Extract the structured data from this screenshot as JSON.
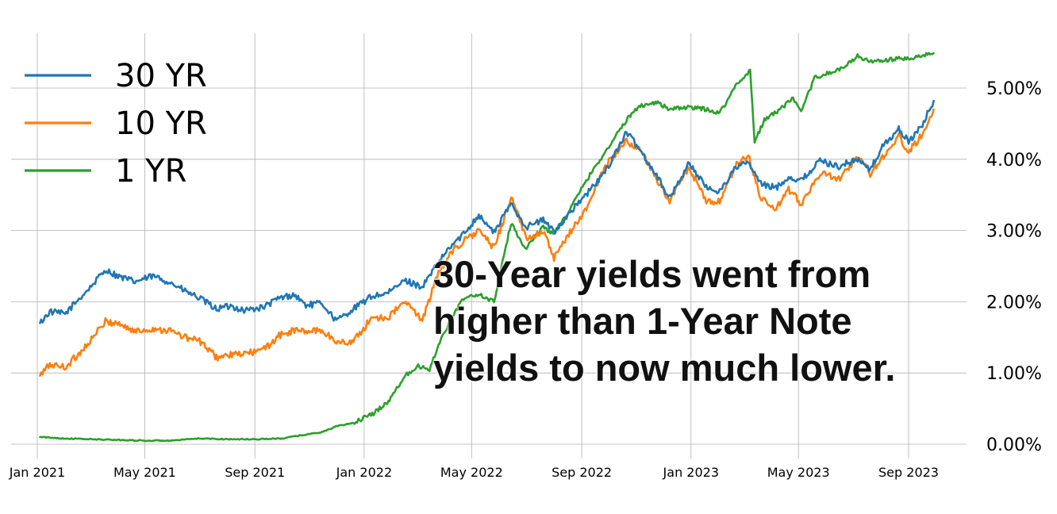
{
  "chart_data": {
    "type": "line",
    "title": "",
    "xlabel": "",
    "ylabel": "",
    "x_ticks": [
      "Jan 2021",
      "May 2021",
      "Sep 2021",
      "Jan 2022",
      "May 2022",
      "Sep 2022",
      "Jan 2023",
      "May 2023",
      "Sep 2023"
    ],
    "y_ticks": [
      "0.00%",
      "1.00%",
      "2.00%",
      "3.00%",
      "4.00%",
      "5.00%"
    ],
    "xlim": [
      "2020-12-01",
      "2023-11-10"
    ],
    "ylim": [
      -0.2,
      5.8
    ],
    "grid": true,
    "legend_position": "top-left",
    "y_axis_side": "right",
    "series": [
      {
        "name": "30 YR",
        "color": "#1f77b4",
        "points": [
          [
            "2021-01-04",
            1.7
          ],
          [
            "2021-01-15",
            1.86
          ],
          [
            "2021-02-01",
            1.83
          ],
          [
            "2021-02-15",
            2.02
          ],
          [
            "2021-03-01",
            2.2
          ],
          [
            "2021-03-18",
            2.45
          ],
          [
            "2021-04-01",
            2.36
          ],
          [
            "2021-04-20",
            2.28
          ],
          [
            "2021-05-10",
            2.36
          ],
          [
            "2021-05-28",
            2.28
          ],
          [
            "2021-06-15",
            2.15
          ],
          [
            "2021-07-01",
            2.05
          ],
          [
            "2021-07-20",
            1.9
          ],
          [
            "2021-08-05",
            1.94
          ],
          [
            "2021-08-20",
            1.88
          ],
          [
            "2021-09-10",
            1.92
          ],
          [
            "2021-09-28",
            2.05
          ],
          [
            "2021-10-15",
            2.1
          ],
          [
            "2021-10-28",
            1.95
          ],
          [
            "2021-11-15",
            1.98
          ],
          [
            "2021-12-01",
            1.73
          ],
          [
            "2021-12-20",
            1.9
          ],
          [
            "2022-01-10",
            2.08
          ],
          [
            "2022-01-28",
            2.12
          ],
          [
            "2022-02-15",
            2.3
          ],
          [
            "2022-03-07",
            2.21
          ],
          [
            "2022-03-25",
            2.55
          ],
          [
            "2022-04-08",
            2.78
          ],
          [
            "2022-04-22",
            2.95
          ],
          [
            "2022-05-09",
            3.22
          ],
          [
            "2022-05-26",
            2.97
          ],
          [
            "2022-06-14",
            3.38
          ],
          [
            "2022-07-01",
            3.05
          ],
          [
            "2022-07-20",
            3.15
          ],
          [
            "2022-08-01",
            2.98
          ],
          [
            "2022-08-19",
            3.26
          ],
          [
            "2022-09-06",
            3.5
          ],
          [
            "2022-09-27",
            3.82
          ],
          [
            "2022-10-21",
            4.38
          ],
          [
            "2022-11-04",
            4.15
          ],
          [
            "2022-11-25",
            3.75
          ],
          [
            "2022-12-08",
            3.45
          ],
          [
            "2022-12-30",
            3.95
          ],
          [
            "2023-01-18",
            3.6
          ],
          [
            "2023-02-02",
            3.55
          ],
          [
            "2023-02-21",
            3.9
          ],
          [
            "2023-03-06",
            3.95
          ],
          [
            "2023-03-20",
            3.65
          ],
          [
            "2023-04-06",
            3.6
          ],
          [
            "2023-04-20",
            3.75
          ],
          [
            "2023-05-04",
            3.7
          ],
          [
            "2023-05-25",
            3.98
          ],
          [
            "2023-06-15",
            3.9
          ],
          [
            "2023-07-06",
            4.0
          ],
          [
            "2023-07-20",
            3.85
          ],
          [
            "2023-08-04",
            4.2
          ],
          [
            "2023-08-21",
            4.42
          ],
          [
            "2023-09-01",
            4.25
          ],
          [
            "2023-09-15",
            4.45
          ],
          [
            "2023-09-29",
            4.82
          ]
        ]
      },
      {
        "name": "10 YR",
        "color": "#ff7f0e",
        "points": [
          [
            "2021-01-04",
            0.96
          ],
          [
            "2021-01-15",
            1.12
          ],
          [
            "2021-02-01",
            1.08
          ],
          [
            "2021-02-15",
            1.25
          ],
          [
            "2021-03-01",
            1.45
          ],
          [
            "2021-03-18",
            1.72
          ],
          [
            "2021-04-01",
            1.7
          ],
          [
            "2021-04-20",
            1.58
          ],
          [
            "2021-05-10",
            1.62
          ],
          [
            "2021-05-28",
            1.6
          ],
          [
            "2021-06-15",
            1.5
          ],
          [
            "2021-07-01",
            1.45
          ],
          [
            "2021-07-20",
            1.22
          ],
          [
            "2021-08-05",
            1.25
          ],
          [
            "2021-08-20",
            1.27
          ],
          [
            "2021-09-10",
            1.32
          ],
          [
            "2021-09-28",
            1.52
          ],
          [
            "2021-10-15",
            1.6
          ],
          [
            "2021-10-28",
            1.58
          ],
          [
            "2021-11-15",
            1.6
          ],
          [
            "2021-12-01",
            1.43
          ],
          [
            "2021-12-20",
            1.44
          ],
          [
            "2022-01-10",
            1.78
          ],
          [
            "2022-01-28",
            1.78
          ],
          [
            "2022-02-15",
            2.0
          ],
          [
            "2022-03-07",
            1.75
          ],
          [
            "2022-03-25",
            2.4
          ],
          [
            "2022-04-08",
            2.7
          ],
          [
            "2022-04-22",
            2.85
          ],
          [
            "2022-05-09",
            3.0
          ],
          [
            "2022-05-26",
            2.75
          ],
          [
            "2022-06-14",
            3.48
          ],
          [
            "2022-07-01",
            2.88
          ],
          [
            "2022-07-20",
            3.0
          ],
          [
            "2022-08-01",
            2.6
          ],
          [
            "2022-08-19",
            2.98
          ],
          [
            "2022-09-06",
            3.3
          ],
          [
            "2022-09-27",
            3.9
          ],
          [
            "2022-10-21",
            4.25
          ],
          [
            "2022-11-04",
            4.15
          ],
          [
            "2022-11-25",
            3.7
          ],
          [
            "2022-12-08",
            3.42
          ],
          [
            "2022-12-30",
            3.88
          ],
          [
            "2023-01-18",
            3.4
          ],
          [
            "2023-02-02",
            3.4
          ],
          [
            "2023-02-21",
            3.92
          ],
          [
            "2023-03-06",
            4.05
          ],
          [
            "2023-03-20",
            3.45
          ],
          [
            "2023-04-06",
            3.3
          ],
          [
            "2023-04-20",
            3.57
          ],
          [
            "2023-05-04",
            3.38
          ],
          [
            "2023-05-25",
            3.8
          ],
          [
            "2023-06-15",
            3.72
          ],
          [
            "2023-07-06",
            4.05
          ],
          [
            "2023-07-20",
            3.8
          ],
          [
            "2023-08-04",
            4.05
          ],
          [
            "2023-08-21",
            4.32
          ],
          [
            "2023-09-01",
            4.1
          ],
          [
            "2023-09-15",
            4.33
          ],
          [
            "2023-09-29",
            4.7
          ]
        ]
      },
      {
        "name": "1 YR",
        "color": "#2ca02c",
        "points": [
          [
            "2021-01-04",
            0.1
          ],
          [
            "2021-02-01",
            0.08
          ],
          [
            "2021-03-01",
            0.07
          ],
          [
            "2021-04-01",
            0.06
          ],
          [
            "2021-05-03",
            0.05
          ],
          [
            "2021-06-01",
            0.05
          ],
          [
            "2021-07-01",
            0.08
          ],
          [
            "2021-08-02",
            0.07
          ],
          [
            "2021-09-01",
            0.07
          ],
          [
            "2021-10-01",
            0.08
          ],
          [
            "2021-10-25",
            0.13
          ],
          [
            "2021-11-15",
            0.17
          ],
          [
            "2021-12-01",
            0.25
          ],
          [
            "2021-12-20",
            0.3
          ],
          [
            "2022-01-10",
            0.42
          ],
          [
            "2022-01-28",
            0.6
          ],
          [
            "2022-02-15",
            0.95
          ],
          [
            "2022-03-01",
            1.1
          ],
          [
            "2022-03-15",
            1.05
          ],
          [
            "2022-03-25",
            1.4
          ],
          [
            "2022-04-08",
            1.75
          ],
          [
            "2022-04-22",
            2.05
          ],
          [
            "2022-05-09",
            2.1
          ],
          [
            "2022-05-26",
            2.0
          ],
          [
            "2022-06-14",
            3.1
          ],
          [
            "2022-06-30",
            2.75
          ],
          [
            "2022-07-20",
            3.05
          ],
          [
            "2022-08-01",
            2.95
          ],
          [
            "2022-08-19",
            3.3
          ],
          [
            "2022-09-06",
            3.7
          ],
          [
            "2022-09-27",
            4.1
          ],
          [
            "2022-10-21",
            4.55
          ],
          [
            "2022-11-04",
            4.75
          ],
          [
            "2022-11-25",
            4.8
          ],
          [
            "2022-12-08",
            4.7
          ],
          [
            "2022-12-30",
            4.73
          ],
          [
            "2023-01-18",
            4.7
          ],
          [
            "2023-02-02",
            4.65
          ],
          [
            "2023-02-21",
            5.05
          ],
          [
            "2023-03-08",
            5.25
          ],
          [
            "2023-03-13",
            4.25
          ],
          [
            "2023-03-24",
            4.55
          ],
          [
            "2023-04-10",
            4.7
          ],
          [
            "2023-04-25",
            4.85
          ],
          [
            "2023-05-04",
            4.65
          ],
          [
            "2023-05-19",
            5.15
          ],
          [
            "2023-06-02",
            5.2
          ],
          [
            "2023-06-20",
            5.28
          ],
          [
            "2023-07-06",
            5.45
          ],
          [
            "2023-07-20",
            5.37
          ],
          [
            "2023-08-04",
            5.38
          ],
          [
            "2023-08-21",
            5.42
          ],
          [
            "2023-09-01",
            5.4
          ],
          [
            "2023-09-15",
            5.45
          ],
          [
            "2023-09-29",
            5.49
          ]
        ]
      }
    ]
  },
  "annotation": {
    "lines": [
      "30-Year yields went from",
      "higher than 1-Year Note",
      "yields to now much lower."
    ]
  }
}
